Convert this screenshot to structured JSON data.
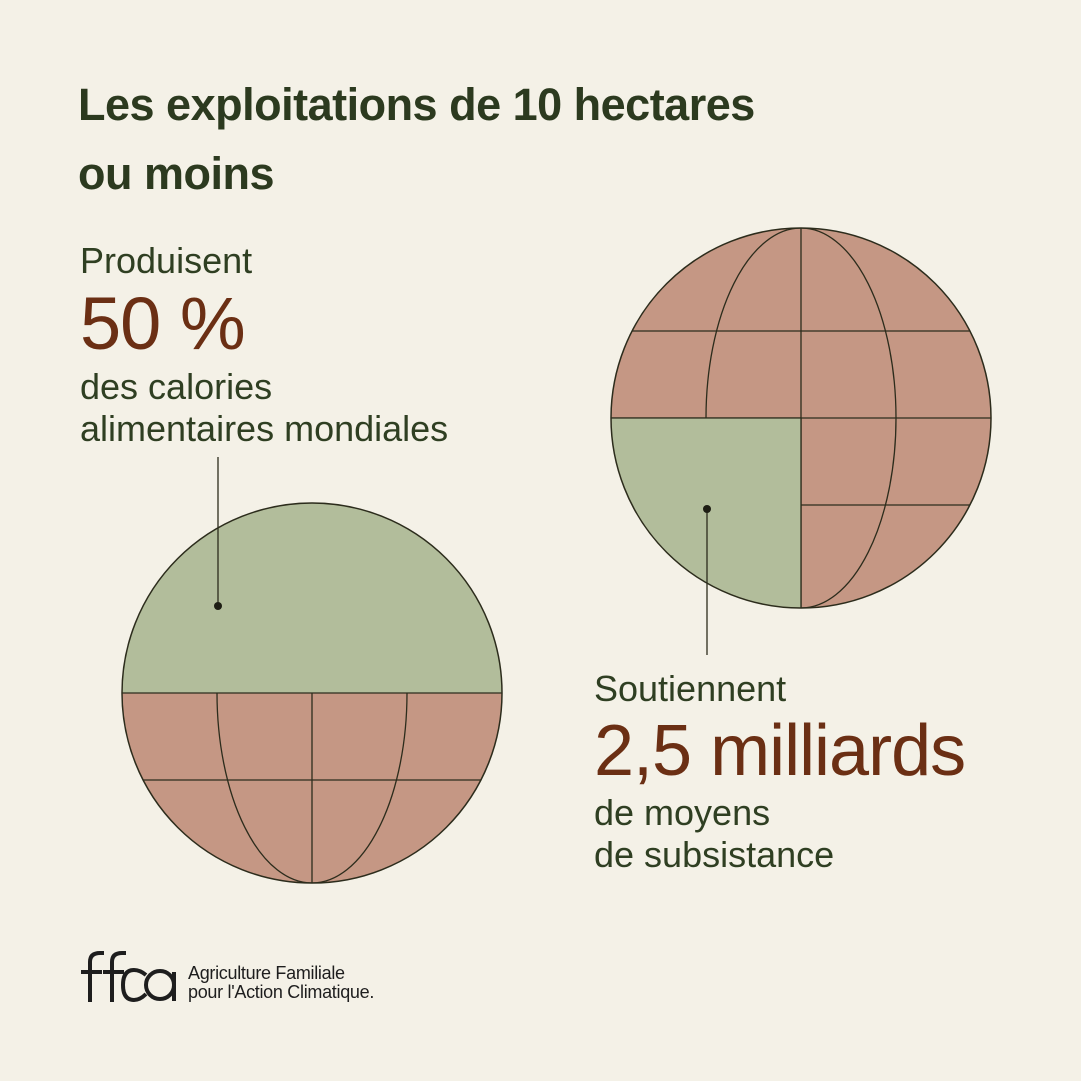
{
  "title": {
    "line1": "Les exploitations de 10 hectares",
    "line2": "ou moins"
  },
  "left_stat": {
    "lead": "Produisent",
    "value": "50 %",
    "desc_line1": "des calories",
    "desc_line2": "alimentaires mondiales"
  },
  "right_stat": {
    "lead": "Soutiennent",
    "value": "2,5 milliards",
    "desc_line1": "de moyens",
    "desc_line2": "de subsistance"
  },
  "globes": {
    "left_highlight_share": 0.5,
    "right_highlight_share": 0.25,
    "colors": {
      "highlight": "#b2bd9b",
      "base": "#c59784",
      "outline": "#2c2c1c"
    }
  },
  "logo": {
    "mark_icon": "ffca-logo-icon",
    "line1": "Agriculture Familiale",
    "line2": "pour l'Action Climatique."
  }
}
